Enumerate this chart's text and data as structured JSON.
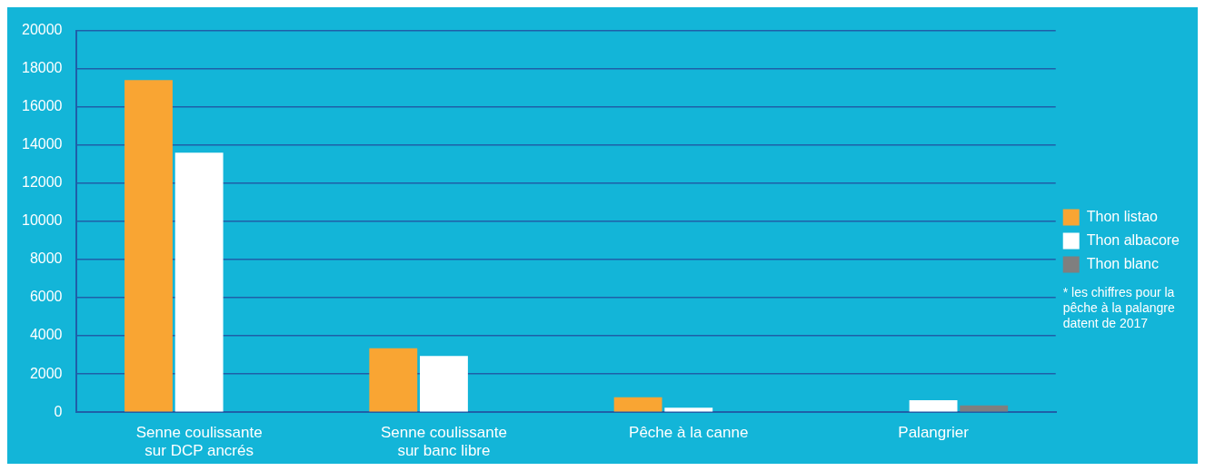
{
  "chart_data": {
    "type": "bar",
    "categories": [
      "Senne coulissante\nsur DCP ancrés",
      "Senne coulissante\nsur banc libre",
      "Pêche à la canne",
      "Palangrier"
    ],
    "series": [
      {
        "name": "Thon listao",
        "color": "#f9a533",
        "values": [
          17400,
          3350,
          780,
          null
        ]
      },
      {
        "name": "Thon albacore",
        "color": "#ffffff",
        "values": [
          13600,
          2950,
          230,
          630
        ]
      },
      {
        "name": "Thon blanc",
        "color": "#7f7f7f",
        "values": [
          null,
          null,
          null,
          360
        ]
      }
    ],
    "ylim": [
      0,
      20000
    ],
    "yticks": [
      0,
      2000,
      4000,
      6000,
      8000,
      10000,
      12000,
      14000,
      16000,
      18000,
      20000
    ],
    "grid": "y",
    "legend": "right",
    "annotations": [
      "* les chiffres pour la\npêche à la palangre\ndatent de 2017"
    ]
  }
}
